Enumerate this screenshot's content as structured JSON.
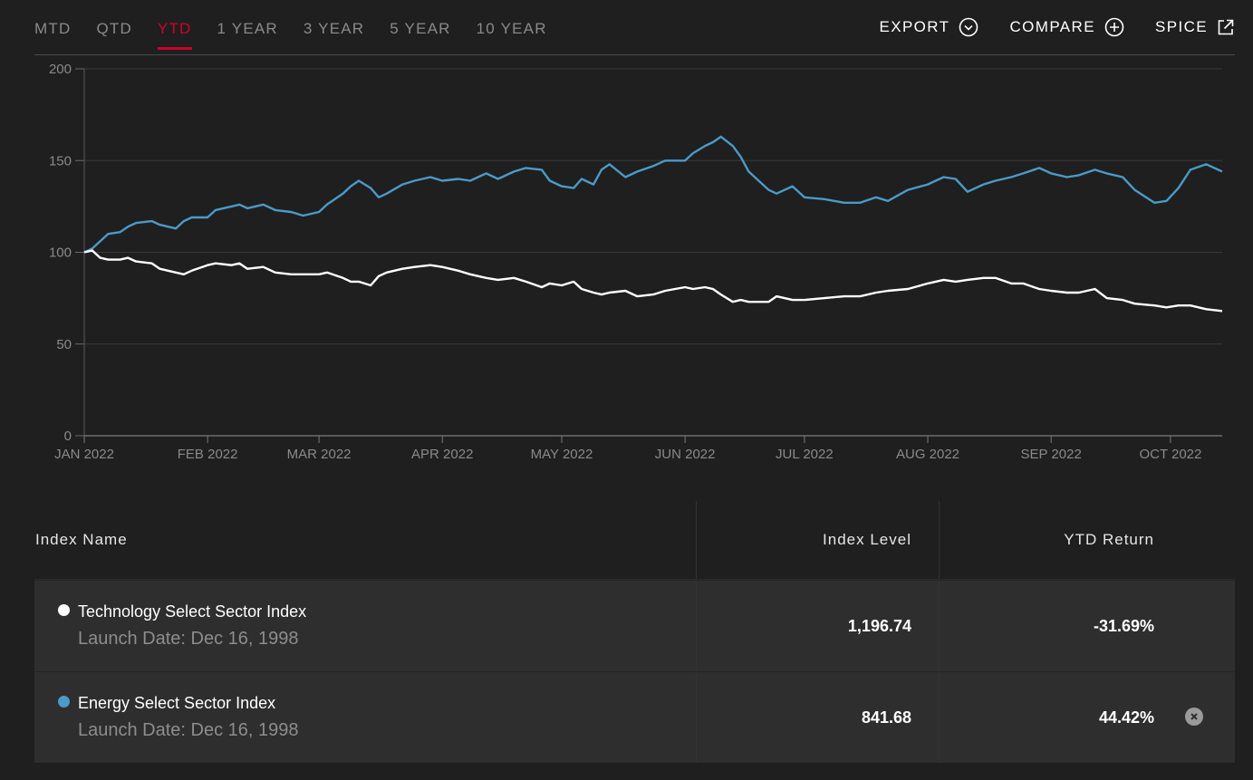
{
  "tabs": [
    {
      "label": "MTD",
      "active": false
    },
    {
      "label": "QTD",
      "active": false
    },
    {
      "label": "YTD",
      "active": true
    },
    {
      "label": "1 YEAR",
      "active": false
    },
    {
      "label": "3 YEAR",
      "active": false
    },
    {
      "label": "5 YEAR",
      "active": false
    },
    {
      "label": "10 YEAR",
      "active": false
    }
  ],
  "actions": {
    "export_label": "EXPORT",
    "export_icon": "chevron-down-circle-icon",
    "compare_label": "COMPARE",
    "compare_icon": "plus-circle-icon",
    "spice_label": "SPICE",
    "spice_icon": "external-link-icon"
  },
  "colors": {
    "accent": "#d0002a",
    "technology": "#ffffff",
    "energy": "#4b9ac8",
    "background": "#1f1f1f",
    "row": "#2e2e2e"
  },
  "chart_data": {
    "type": "line",
    "title": "",
    "xlabel": "",
    "ylabel": "",
    "ylim": [
      0,
      200
    ],
    "yticks": [
      0,
      50,
      100,
      150,
      200
    ],
    "x_domain": [
      "2022-01-01",
      "2022-10-14"
    ],
    "xticks": [
      {
        "date": "2022-01-01",
        "label": "JAN 2022"
      },
      {
        "date": "2022-02-01",
        "label": "FEB 2022"
      },
      {
        "date": "2022-03-01",
        "label": "MAR 2022"
      },
      {
        "date": "2022-04-01",
        "label": "APR 2022"
      },
      {
        "date": "2022-05-01",
        "label": "MAY 2022"
      },
      {
        "date": "2022-06-01",
        "label": "JUN 2022"
      },
      {
        "date": "2022-07-01",
        "label": "JUL 2022"
      },
      {
        "date": "2022-08-01",
        "label": "AUG 2022"
      },
      {
        "date": "2022-09-01",
        "label": "SEP 2022"
      },
      {
        "date": "2022-10-01",
        "label": "OCT 2022"
      }
    ],
    "grid": true,
    "series": [
      {
        "name": "Energy Select Sector Index",
        "color": "#4b9ac8",
        "points": [
          [
            "2022-01-01",
            100
          ],
          [
            "2022-01-03",
            102
          ],
          [
            "2022-01-05",
            106
          ],
          [
            "2022-01-07",
            110
          ],
          [
            "2022-01-10",
            111
          ],
          [
            "2022-01-12",
            114
          ],
          [
            "2022-01-14",
            116
          ],
          [
            "2022-01-18",
            117
          ],
          [
            "2022-01-20",
            115
          ],
          [
            "2022-01-24",
            113
          ],
          [
            "2022-01-26",
            117
          ],
          [
            "2022-01-28",
            119
          ],
          [
            "2022-02-01",
            119
          ],
          [
            "2022-02-03",
            123
          ],
          [
            "2022-02-07",
            125
          ],
          [
            "2022-02-09",
            126
          ],
          [
            "2022-02-11",
            124
          ],
          [
            "2022-02-15",
            126
          ],
          [
            "2022-02-18",
            123
          ],
          [
            "2022-02-22",
            122
          ],
          [
            "2022-02-25",
            120
          ],
          [
            "2022-03-01",
            122
          ],
          [
            "2022-03-03",
            126
          ],
          [
            "2022-03-07",
            132
          ],
          [
            "2022-03-09",
            136
          ],
          [
            "2022-03-11",
            139
          ],
          [
            "2022-03-14",
            135
          ],
          [
            "2022-03-16",
            130
          ],
          [
            "2022-03-18",
            132
          ],
          [
            "2022-03-22",
            137
          ],
          [
            "2022-03-25",
            139
          ],
          [
            "2022-03-29",
            141
          ],
          [
            "2022-04-01",
            139
          ],
          [
            "2022-04-05",
            140
          ],
          [
            "2022-04-08",
            139
          ],
          [
            "2022-04-12",
            143
          ],
          [
            "2022-04-15",
            140
          ],
          [
            "2022-04-19",
            144
          ],
          [
            "2022-04-22",
            146
          ],
          [
            "2022-04-26",
            145
          ],
          [
            "2022-04-28",
            139
          ],
          [
            "2022-05-01",
            136
          ],
          [
            "2022-05-04",
            135
          ],
          [
            "2022-05-06",
            140
          ],
          [
            "2022-05-09",
            137
          ],
          [
            "2022-05-11",
            145
          ],
          [
            "2022-05-13",
            148
          ],
          [
            "2022-05-17",
            141
          ],
          [
            "2022-05-20",
            144
          ],
          [
            "2022-05-24",
            147
          ],
          [
            "2022-05-27",
            150
          ],
          [
            "2022-06-01",
            150
          ],
          [
            "2022-06-03",
            154
          ],
          [
            "2022-06-06",
            158
          ],
          [
            "2022-06-08",
            160
          ],
          [
            "2022-06-10",
            163
          ],
          [
            "2022-06-13",
            158
          ],
          [
            "2022-06-15",
            152
          ],
          [
            "2022-06-17",
            144
          ],
          [
            "2022-06-22",
            134
          ],
          [
            "2022-06-24",
            132
          ],
          [
            "2022-06-28",
            136
          ],
          [
            "2022-07-01",
            130
          ],
          [
            "2022-07-06",
            129
          ],
          [
            "2022-07-11",
            127
          ],
          [
            "2022-07-15",
            127
          ],
          [
            "2022-07-19",
            130
          ],
          [
            "2022-07-22",
            128
          ],
          [
            "2022-07-27",
            134
          ],
          [
            "2022-08-01",
            137
          ],
          [
            "2022-08-03",
            139
          ],
          [
            "2022-08-05",
            141
          ],
          [
            "2022-08-08",
            140
          ],
          [
            "2022-08-11",
            133
          ],
          [
            "2022-08-15",
            137
          ],
          [
            "2022-08-18",
            139
          ],
          [
            "2022-08-22",
            141
          ],
          [
            "2022-08-25",
            143
          ],
          [
            "2022-08-29",
            146
          ],
          [
            "2022-09-01",
            143
          ],
          [
            "2022-09-05",
            141
          ],
          [
            "2022-09-08",
            142
          ],
          [
            "2022-09-12",
            145
          ],
          [
            "2022-09-15",
            143
          ],
          [
            "2022-09-19",
            141
          ],
          [
            "2022-09-22",
            134
          ],
          [
            "2022-09-27",
            127
          ],
          [
            "2022-09-30",
            128
          ],
          [
            "2022-10-03",
            135
          ],
          [
            "2022-10-06",
            145
          ],
          [
            "2022-10-10",
            148
          ],
          [
            "2022-10-14",
            144
          ]
        ]
      },
      {
        "name": "Technology Select Sector Index",
        "color": "#ffffff",
        "points": [
          [
            "2022-01-01",
            100
          ],
          [
            "2022-01-03",
            101
          ],
          [
            "2022-01-05",
            97
          ],
          [
            "2022-01-07",
            96
          ],
          [
            "2022-01-10",
            96
          ],
          [
            "2022-01-12",
            97
          ],
          [
            "2022-01-14",
            95
          ],
          [
            "2022-01-18",
            94
          ],
          [
            "2022-01-20",
            91
          ],
          [
            "2022-01-24",
            89
          ],
          [
            "2022-01-26",
            88
          ],
          [
            "2022-01-28",
            90
          ],
          [
            "2022-02-01",
            93
          ],
          [
            "2022-02-03",
            94
          ],
          [
            "2022-02-07",
            93
          ],
          [
            "2022-02-09",
            94
          ],
          [
            "2022-02-11",
            91
          ],
          [
            "2022-02-15",
            92
          ],
          [
            "2022-02-18",
            89
          ],
          [
            "2022-02-22",
            88
          ],
          [
            "2022-02-25",
            88
          ],
          [
            "2022-03-01",
            88
          ],
          [
            "2022-03-03",
            89
          ],
          [
            "2022-03-07",
            86
          ],
          [
            "2022-03-09",
            84
          ],
          [
            "2022-03-11",
            84
          ],
          [
            "2022-03-14",
            82
          ],
          [
            "2022-03-16",
            87
          ],
          [
            "2022-03-18",
            89
          ],
          [
            "2022-03-22",
            91
          ],
          [
            "2022-03-25",
            92
          ],
          [
            "2022-03-29",
            93
          ],
          [
            "2022-04-01",
            92
          ],
          [
            "2022-04-05",
            90
          ],
          [
            "2022-04-08",
            88
          ],
          [
            "2022-04-12",
            86
          ],
          [
            "2022-04-15",
            85
          ],
          [
            "2022-04-19",
            86
          ],
          [
            "2022-04-22",
            84
          ],
          [
            "2022-04-26",
            81
          ],
          [
            "2022-04-28",
            83
          ],
          [
            "2022-05-01",
            82
          ],
          [
            "2022-05-04",
            84
          ],
          [
            "2022-05-06",
            80
          ],
          [
            "2022-05-09",
            78
          ],
          [
            "2022-05-11",
            77
          ],
          [
            "2022-05-13",
            78
          ],
          [
            "2022-05-17",
            79
          ],
          [
            "2022-05-20",
            76
          ],
          [
            "2022-05-24",
            77
          ],
          [
            "2022-05-27",
            79
          ],
          [
            "2022-06-01",
            81
          ],
          [
            "2022-06-03",
            80
          ],
          [
            "2022-06-06",
            81
          ],
          [
            "2022-06-08",
            80
          ],
          [
            "2022-06-10",
            77
          ],
          [
            "2022-06-13",
            73
          ],
          [
            "2022-06-15",
            74
          ],
          [
            "2022-06-17",
            73
          ],
          [
            "2022-06-22",
            73
          ],
          [
            "2022-06-24",
            76
          ],
          [
            "2022-06-28",
            74
          ],
          [
            "2022-07-01",
            74
          ],
          [
            "2022-07-06",
            75
          ],
          [
            "2022-07-11",
            76
          ],
          [
            "2022-07-15",
            76
          ],
          [
            "2022-07-19",
            78
          ],
          [
            "2022-07-22",
            79
          ],
          [
            "2022-07-27",
            80
          ],
          [
            "2022-08-01",
            83
          ],
          [
            "2022-08-03",
            84
          ],
          [
            "2022-08-05",
            85
          ],
          [
            "2022-08-08",
            84
          ],
          [
            "2022-08-11",
            85
          ],
          [
            "2022-08-15",
            86
          ],
          [
            "2022-08-18",
            86
          ],
          [
            "2022-08-22",
            83
          ],
          [
            "2022-08-25",
            83
          ],
          [
            "2022-08-29",
            80
          ],
          [
            "2022-09-01",
            79
          ],
          [
            "2022-09-05",
            78
          ],
          [
            "2022-09-08",
            78
          ],
          [
            "2022-09-12",
            80
          ],
          [
            "2022-09-15",
            75
          ],
          [
            "2022-09-19",
            74
          ],
          [
            "2022-09-22",
            72
          ],
          [
            "2022-09-27",
            71
          ],
          [
            "2022-09-30",
            70
          ],
          [
            "2022-10-03",
            71
          ],
          [
            "2022-10-06",
            71
          ],
          [
            "2022-10-10",
            69
          ],
          [
            "2022-10-14",
            68
          ]
        ]
      }
    ]
  },
  "table": {
    "headers": {
      "name": "Index Name",
      "level": "Index Level",
      "ret": "YTD Return"
    },
    "rows": [
      {
        "name": "Technology Select Sector Index",
        "launch": "Launch Date: Dec 16, 1998",
        "level": "1,196.74",
        "ret": "-31.69%",
        "dot_color": "#ffffff",
        "removable": false
      },
      {
        "name": "Energy Select Sector Index",
        "launch": "Launch Date: Dec 16, 1998",
        "level": "841.68",
        "ret": "44.42%",
        "dot_color": "#4b9ac8",
        "removable": true,
        "remove_icon": "close-circle-icon"
      }
    ]
  }
}
